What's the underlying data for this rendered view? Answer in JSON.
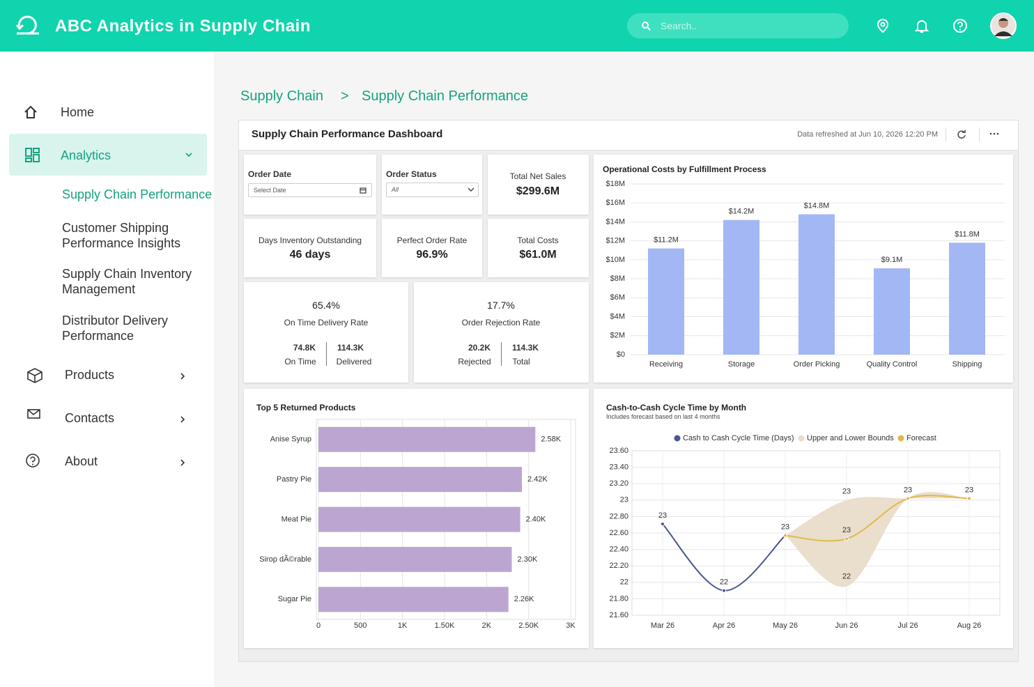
{
  "header": {
    "title": "ABC Analytics in Supply Chain",
    "search_placeholder": "Search.."
  },
  "sidebar": {
    "items": [
      {
        "label": "Home"
      },
      {
        "label": "Analytics",
        "children": [
          "Supply Chain Performance",
          "Customer Shipping Performance Insights",
          "Supply Chain Inventory Management",
          "Distributor Delivery Performance"
        ]
      },
      {
        "label": "Products"
      },
      {
        "label": "Contacts"
      },
      {
        "label": "About"
      }
    ]
  },
  "breadcrumb": [
    "Supply Chain",
    ">",
    "Supply Chain Performance"
  ],
  "dashboard": {
    "title": "Supply Chain Performance Dashboard",
    "refreshed": "Data refreshed at Jun 10, 2026 12:20 PM"
  },
  "filters": [
    {
      "label": "Order Date",
      "placeholder": "Select Date"
    },
    {
      "label": "Order Status",
      "value": "All"
    }
  ],
  "kpis": [
    {
      "label": "Total Net Sales",
      "value": "$299.6M"
    },
    {
      "label": "Days Inventory Outstanding",
      "value": "46 days"
    },
    {
      "label": "Perfect Order Rate",
      "value": "96.9%"
    },
    {
      "label": "Total Costs",
      "value": "$61.0M"
    }
  ],
  "rates": [
    {
      "value": "65.4%",
      "label": "On Time Delivery Rate",
      "parts": [
        {
          "value": "74.8K",
          "label": "On Time"
        },
        {
          "value": "114.3K",
          "label": "Delivered"
        }
      ]
    },
    {
      "value": "17.7%",
      "label": "Order Rejection Rate",
      "parts": [
        {
          "value": "20.2K",
          "label": "Rejected"
        },
        {
          "value": "114.3K",
          "label": "Total"
        }
      ]
    }
  ],
  "chart_data": [
    {
      "type": "bar",
      "orientation": "vertical",
      "title": "Operational Costs by Fulfillment Process",
      "categories": [
        "Receiving",
        "Storage",
        "Order Picking",
        "Quality Control",
        "Shipping"
      ],
      "values": [
        11200000,
        14200000,
        14800000,
        9100000,
        11800000
      ],
      "value_labels": [
        "$11.2M",
        "$14.2M",
        "$14.8M",
        "$9.1M",
        "$11.8M"
      ],
      "color": "#a3b7f5",
      "grid": true,
      "ylim": [
        0,
        18000000
      ],
      "yticks": [
        {
          "value": 0,
          "label": "$0"
        },
        {
          "value": 2000000,
          "label": "$2M"
        },
        {
          "value": 4000000,
          "label": "$4M"
        },
        {
          "value": 6000000,
          "label": "$6M"
        },
        {
          "value": 8000000,
          "label": "$8M"
        },
        {
          "value": 10000000,
          "label": "$10M"
        },
        {
          "value": 12000000,
          "label": "$12M"
        },
        {
          "value": 14000000,
          "label": "$14M"
        },
        {
          "value": 16000000,
          "label": "$16M"
        },
        {
          "value": 18000000,
          "label": "$18M"
        }
      ]
    },
    {
      "type": "bar",
      "orientation": "horizontal",
      "title": "Top 5 Returned Products",
      "categories": [
        "Anise Syrup",
        "Pastry Pie",
        "Meat Pie",
        "Sirop dÃ©rable",
        "Sugar Pie"
      ],
      "values": [
        2580,
        2420,
        2400,
        2300,
        2260
      ],
      "value_labels": [
        "2.58K",
        "2.42K",
        "2.40K",
        "2.30K",
        "2.26K"
      ],
      "color": "#bca6d1",
      "grid": true,
      "xlim": [
        0,
        3000
      ],
      "xticks": [
        0,
        500,
        {
          "value": 1000,
          "label": "1K"
        },
        {
          "value": 1500,
          "label": "1.50K"
        },
        {
          "value": 2000,
          "label": "2K"
        },
        {
          "value": 2500,
          "label": "2.50K"
        },
        {
          "value": 3000,
          "label": "3K"
        }
      ]
    },
    {
      "type": "line",
      "title": "Cash-to-Cash Cycle Time by Month",
      "subtitle": "Includes forecast based on last 4 months",
      "categories": [
        "Mar 26",
        "Apr 26",
        "May 26",
        "Jun 26",
        "Jul 26",
        "Aug 26"
      ],
      "legend": "top",
      "grid": true,
      "series": [
        {
          "name": "Cash to Cash Cycle Time (Days)",
          "color": "#4b5591",
          "values": [
            22.71,
            21.9,
            22.57,
            null,
            null,
            null
          ],
          "value_labels": [
            "23",
            "22",
            "23",
            null,
            null,
            null
          ]
        },
        {
          "name": "Upper and Lower Bounds",
          "color": "#e9ddc9",
          "values": [
            null,
            null,
            22.57,
            23.0,
            23.02,
            23.02
          ],
          "lower": [
            null,
            null,
            22.57,
            21.95,
            23.02,
            23.02
          ],
          "value_labels": [
            null,
            null,
            null,
            "23",
            null,
            null
          ],
          "lower_labels": [
            null,
            null,
            null,
            "22",
            null,
            null
          ]
        },
        {
          "name": "Forecast",
          "color": "#e0b94c",
          "values": [
            null,
            null,
            22.57,
            22.53,
            23.02,
            23.02
          ],
          "value_labels": [
            null,
            null,
            null,
            "23",
            "23",
            "23"
          ]
        }
      ],
      "ylim": [
        21.6,
        23.6
      ],
      "yticks": [
        {
          "value": 23.6,
          "label": "23.60"
        },
        {
          "value": 23.4,
          "label": "23.40"
        },
        {
          "value": 23.2,
          "label": "23.20"
        },
        23,
        {
          "value": 22.8,
          "label": "22.80"
        },
        {
          "value": 22.6,
          "label": "22.60"
        },
        {
          "value": 22.4,
          "label": "22.40"
        },
        {
          "value": 22.2,
          "label": "22.20"
        },
        22,
        {
          "value": 21.8,
          "label": "21.80"
        },
        {
          "value": 21.6,
          "label": "21.60"
        }
      ]
    }
  ]
}
